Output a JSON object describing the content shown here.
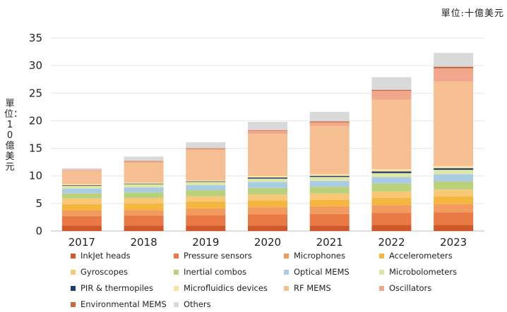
{
  "unit_note": "單位:十億美元",
  "chart_data": {
    "type": "bar",
    "stacked": true,
    "title": "",
    "ylabel": "單位：10億美元",
    "xlabel": "",
    "ylim": [
      0,
      35
    ],
    "yticks": [
      "0",
      "5",
      "10",
      "15",
      "20",
      "25",
      "30",
      "35"
    ],
    "grid": true,
    "legend_position": "bottom",
    "categories": [
      "2017",
      "2018",
      "2019",
      "2020",
      "2021",
      "2022",
      "2023"
    ],
    "series": [
      {
        "name": "InkJet heads",
        "color": "#d0592a",
        "values": [
          1.0,
          1.0,
          1.0,
          1.0,
          1.0,
          1.1,
          1.1
        ]
      },
      {
        "name": "Pressure sensors",
        "color": "#ea7a45",
        "values": [
          1.7,
          1.8,
          1.9,
          2.0,
          2.1,
          2.2,
          2.3
        ]
      },
      {
        "name": "Microphones",
        "color": "#f19b5f",
        "values": [
          1.0,
          1.0,
          1.2,
          1.3,
          1.4,
          1.4,
          1.5
        ]
      },
      {
        "name": "Accelerometers",
        "color": "#f5b63f",
        "values": [
          1.2,
          1.2,
          1.2,
          1.2,
          1.2,
          1.3,
          1.4
        ]
      },
      {
        "name": "Gyroscopes",
        "color": "#f8c878",
        "values": [
          1.0,
          1.0,
          1.0,
          1.1,
          1.1,
          1.2,
          1.2
        ]
      },
      {
        "name": "Inertial combos",
        "color": "#b9d27a",
        "values": [
          0.9,
          1.0,
          1.1,
          1.2,
          1.2,
          1.4,
          1.5
        ]
      },
      {
        "name": "Optical MEMS",
        "color": "#a9cce3",
        "values": [
          0.9,
          0.9,
          0.9,
          1.1,
          1.1,
          1.2,
          1.3
        ]
      },
      {
        "name": "Microbolometers",
        "color": "#dfe7a8",
        "values": [
          0.5,
          0.6,
          0.6,
          0.6,
          0.7,
          0.7,
          0.8
        ]
      },
      {
        "name": "PIR & thermopiles",
        "color": "#1f3e6e",
        "values": [
          0.1,
          0.1,
          0.1,
          0.2,
          0.2,
          0.3,
          0.3
        ]
      },
      {
        "name": "Microfluidics devices",
        "color": "#fbe3a6",
        "values": [
          0.2,
          0.2,
          0.2,
          0.3,
          0.3,
          0.4,
          0.4
        ]
      },
      {
        "name": "RF MEMS",
        "color": "#f5bf91",
        "values": [
          2.4,
          3.6,
          5.5,
          7.6,
          8.8,
          12.6,
          15.3
        ]
      },
      {
        "name": "Oscillators",
        "color": "#f0a78c",
        "values": [
          0.2,
          0.2,
          0.2,
          0.6,
          0.6,
          1.6,
          2.4
        ]
      },
      {
        "name": "Environmental MEMS",
        "color": "#c76a3d",
        "values": [
          0.0,
          0.1,
          0.1,
          0.1,
          0.2,
          0.2,
          0.3
        ]
      },
      {
        "name": "Others",
        "color": "#d9d9d9",
        "values": [
          0.3,
          0.8,
          1.1,
          1.5,
          1.7,
          2.3,
          2.5
        ]
      }
    ]
  }
}
